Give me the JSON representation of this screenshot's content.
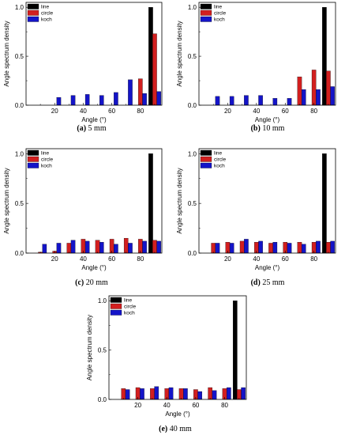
{
  "chart_data": [
    {
      "type": "bar",
      "panel": "a",
      "caption_letter": "(a)",
      "caption_text": "5 mm",
      "xlabel": "Angle (°)",
      "ylabel": "Angle spectrum density",
      "xlim": [
        0,
        95
      ],
      "ylim": [
        0,
        1.05
      ],
      "x_ticks": [
        20,
        40,
        60,
        80
      ],
      "y_ticks": [
        0.0,
        0.5,
        1.0
      ],
      "y_tick_labels": [
        "0.0",
        "0.5",
        "1.0"
      ],
      "legend_position": "top-left",
      "colors": {
        "line": "#000000",
        "circle": "#d21f1f",
        "koch": "#1414c8"
      },
      "x": [
        10,
        20,
        30,
        40,
        50,
        60,
        70,
        80,
        90
      ],
      "series": [
        {
          "name": "line",
          "values": [
            0,
            0,
            0,
            0,
            0,
            0,
            0,
            0,
            1.0
          ]
        },
        {
          "name": "circle",
          "values": [
            0,
            0,
            0,
            0,
            0,
            0,
            0,
            0.27,
            0.73
          ]
        },
        {
          "name": "koch",
          "values": [
            0,
            0.08,
            0.1,
            0.11,
            0.1,
            0.13,
            0.26,
            0.12,
            0.14
          ]
        }
      ]
    },
    {
      "type": "bar",
      "panel": "b",
      "caption_letter": "(b)",
      "caption_text": "10 mm",
      "xlabel": "Angle (°)",
      "ylabel": "Angle spectrum density",
      "xlim": [
        0,
        95
      ],
      "ylim": [
        0,
        1.05
      ],
      "x_ticks": [
        20,
        40,
        60,
        80
      ],
      "y_ticks": [
        0.0,
        0.5,
        1.0
      ],
      "y_tick_labels": [
        "0.0",
        "0.5",
        "1.0"
      ],
      "legend_position": "top-left",
      "colors": {
        "line": "#000000",
        "circle": "#d21f1f",
        "koch": "#1414c8"
      },
      "x": [
        10,
        20,
        30,
        40,
        50,
        60,
        70,
        80,
        90
      ],
      "series": [
        {
          "name": "line",
          "values": [
            0,
            0,
            0,
            0,
            0,
            0,
            0,
            0,
            1.0
          ]
        },
        {
          "name": "circle",
          "values": [
            0,
            0,
            0,
            0,
            0,
            0,
            0.29,
            0.36,
            0.35
          ]
        },
        {
          "name": "koch",
          "values": [
            0.09,
            0.09,
            0.1,
            0.1,
            0.07,
            0.07,
            0.16,
            0.16,
            0.19
          ]
        }
      ]
    },
    {
      "type": "bar",
      "panel": "c",
      "caption_letter": "(c)",
      "caption_text": "20 mm",
      "xlabel": "Angle (°)",
      "ylabel": "Angle spectrum density",
      "xlim": [
        0,
        95
      ],
      "ylim": [
        0,
        1.05
      ],
      "x_ticks": [
        20,
        40,
        60,
        80
      ],
      "y_ticks": [
        0.0,
        0.5,
        1.0
      ],
      "y_tick_labels": [
        "0.0",
        "0.5",
        "1.0"
      ],
      "legend_position": "top-left",
      "colors": {
        "line": "#000000",
        "circle": "#d21f1f",
        "koch": "#1414c8"
      },
      "x": [
        10,
        20,
        30,
        40,
        50,
        60,
        70,
        80,
        90
      ],
      "series": [
        {
          "name": "line",
          "values": [
            0,
            0,
            0,
            0,
            0,
            0,
            0,
            0,
            1.0
          ]
        },
        {
          "name": "circle",
          "values": [
            0.01,
            0.02,
            0.1,
            0.14,
            0.13,
            0.14,
            0.15,
            0.14,
            0.13
          ]
        },
        {
          "name": "koch",
          "values": [
            0.09,
            0.1,
            0.13,
            0.12,
            0.11,
            0.09,
            0.1,
            0.12,
            0.12
          ]
        }
      ]
    },
    {
      "type": "bar",
      "panel": "d",
      "caption_letter": "(d)",
      "caption_text": "25 mm",
      "xlabel": "Angle (°)",
      "ylabel": "Angle spectrum density",
      "xlim": [
        0,
        95
      ],
      "ylim": [
        0,
        1.05
      ],
      "x_ticks": [
        20,
        40,
        60,
        80
      ],
      "y_ticks": [
        0.0,
        0.5,
        1.0
      ],
      "y_tick_labels": [
        "0.0",
        "0.5",
        "1.0"
      ],
      "legend_position": "top-left",
      "colors": {
        "line": "#000000",
        "circle": "#d21f1f",
        "koch": "#1414c8"
      },
      "x": [
        10,
        20,
        30,
        40,
        50,
        60,
        70,
        80,
        90
      ],
      "series": [
        {
          "name": "line",
          "values": [
            0,
            0,
            0,
            0,
            0,
            0,
            0,
            0,
            1.0
          ]
        },
        {
          "name": "circle",
          "values": [
            0.1,
            0.11,
            0.12,
            0.11,
            0.1,
            0.11,
            0.11,
            0.11,
            0.11
          ]
        },
        {
          "name": "koch",
          "values": [
            0.1,
            0.1,
            0.14,
            0.12,
            0.11,
            0.1,
            0.09,
            0.12,
            0.12
          ]
        }
      ]
    },
    {
      "type": "bar",
      "panel": "e",
      "caption_letter": "(e)",
      "caption_text": "40 mm",
      "xlabel": "Angle (°)",
      "ylabel": "Angle spectrum density",
      "xlim": [
        0,
        95
      ],
      "ylim": [
        0,
        1.05
      ],
      "x_ticks": [
        20,
        40,
        60,
        80
      ],
      "y_ticks": [
        0.0,
        0.5,
        1.0
      ],
      "y_tick_labels": [
        "0.0",
        "0.5",
        "1.0"
      ],
      "legend_position": "top-left",
      "colors": {
        "line": "#000000",
        "circle": "#d21f1f",
        "koch": "#1414c8"
      },
      "x": [
        10,
        20,
        30,
        40,
        50,
        60,
        70,
        80,
        90
      ],
      "series": [
        {
          "name": "line",
          "values": [
            0,
            0,
            0,
            0,
            0,
            0,
            0,
            0,
            1.0
          ]
        },
        {
          "name": "circle",
          "values": [
            0.11,
            0.12,
            0.11,
            0.11,
            0.11,
            0.1,
            0.12,
            0.11,
            0.1
          ]
        },
        {
          "name": "koch",
          "values": [
            0.1,
            0.11,
            0.13,
            0.12,
            0.11,
            0.08,
            0.09,
            0.12,
            0.12
          ]
        }
      ]
    }
  ]
}
